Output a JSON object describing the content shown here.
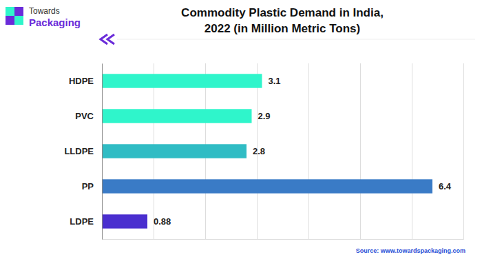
{
  "logo": [
    "Towards",
    "Packaging"
  ],
  "chart_data": {
    "type": "bar",
    "orientation": "horizontal",
    "title": "Commodity Plastic Demand in India,\n2022 (in Million Metric Tons)",
    "source": "Source: www.towardspackaging.com",
    "categories": [
      "HDPE",
      "PVC",
      "LLDPE",
      "PP",
      "LDPE"
    ],
    "values": [
      3.1,
      2.9,
      2.8,
      6.4,
      0.88
    ],
    "colors": [
      "#2ff5cb",
      "#2ff5cb",
      "#30bcc4",
      "#3a7bc6",
      "#4a2fcf"
    ],
    "xlim": [
      0,
      7
    ],
    "xticks": [
      0,
      1,
      2,
      3,
      4,
      5,
      6,
      7
    ],
    "grid": true,
    "tick_labels": "y",
    "data_labels": true
  }
}
